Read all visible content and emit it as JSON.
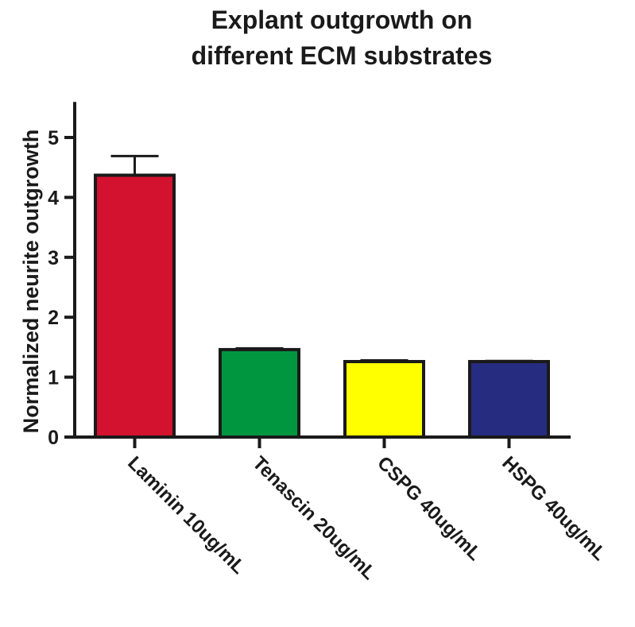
{
  "chart_data": {
    "type": "bar",
    "title": [
      "Explant outgrowth on",
      "different ECM substrates"
    ],
    "xlabel": "",
    "ylabel": "Normalized neurite outgrowth",
    "ylim": [
      0,
      5.5
    ],
    "yticks": [
      0,
      1,
      2,
      3,
      4,
      5
    ],
    "categories": [
      "Laminin 10ug/mL",
      "Tenascin 20ug/mL",
      "CSPG 40ug/mL",
      "HSPG 40ug/mL"
    ],
    "values": [
      4.37,
      1.46,
      1.26,
      1.26
    ],
    "errors": [
      0.32,
      0.02,
      0.02,
      0.01
    ],
    "colors": [
      "#d2122e",
      "#009640",
      "#ffff00",
      "#262c80"
    ],
    "error_bars": "upper",
    "grid": false,
    "legend": "none"
  }
}
